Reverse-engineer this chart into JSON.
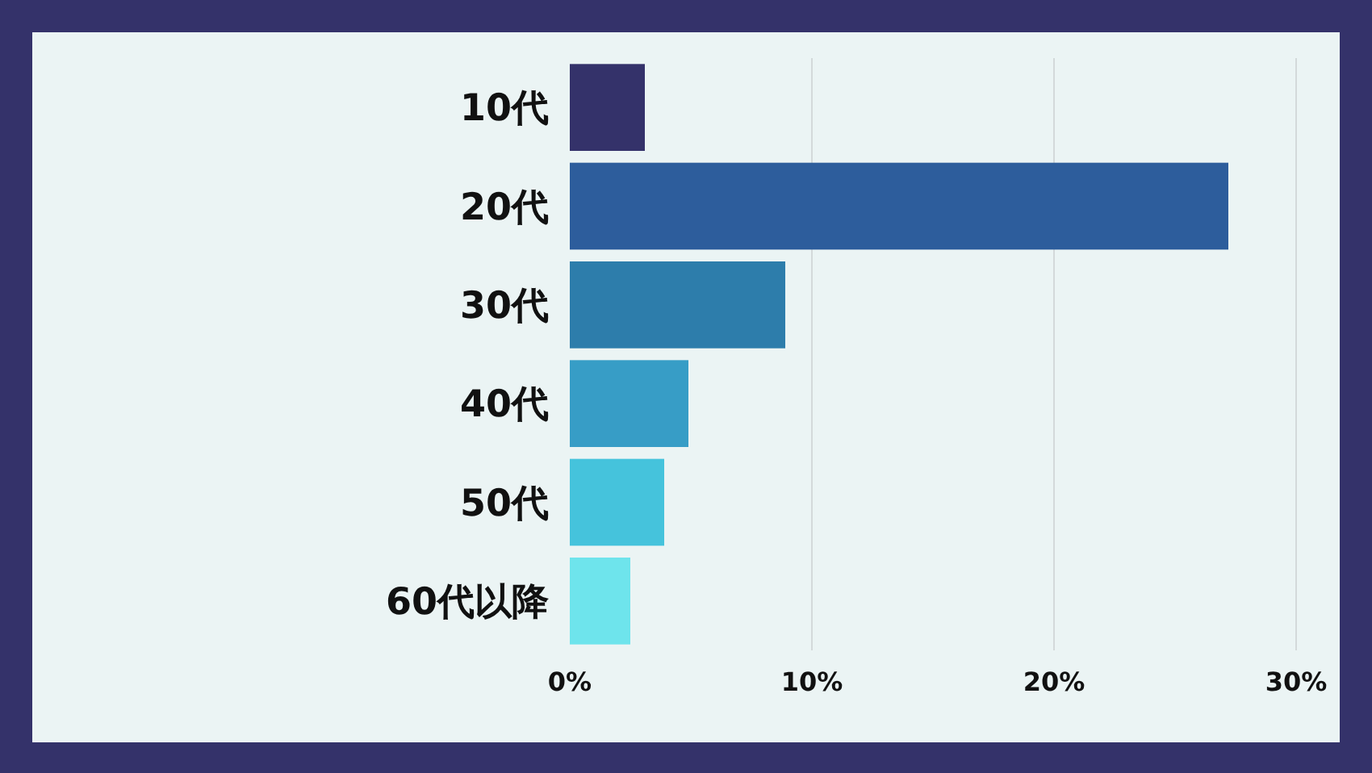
{
  "chart_data": {
    "type": "bar",
    "orientation": "horizontal",
    "categories": [
      "10代",
      "20代",
      "30代",
      "40代",
      "50代",
      "60代以降"
    ],
    "values": [
      3.1,
      27.2,
      8.9,
      4.9,
      3.9,
      2.5
    ],
    "colors": [
      "#34326a",
      "#2d5d9c",
      "#2d7dab",
      "#379dc6",
      "#45c3dc",
      "#6ee4ec"
    ],
    "xlim": [
      0,
      30
    ],
    "xticks": [
      {
        "value": 0,
        "label": "0%"
      },
      {
        "value": 10,
        "label": "10%"
      },
      {
        "value": 20,
        "label": "20%"
      },
      {
        "value": 30,
        "label": "30%"
      }
    ],
    "grid": "x"
  }
}
